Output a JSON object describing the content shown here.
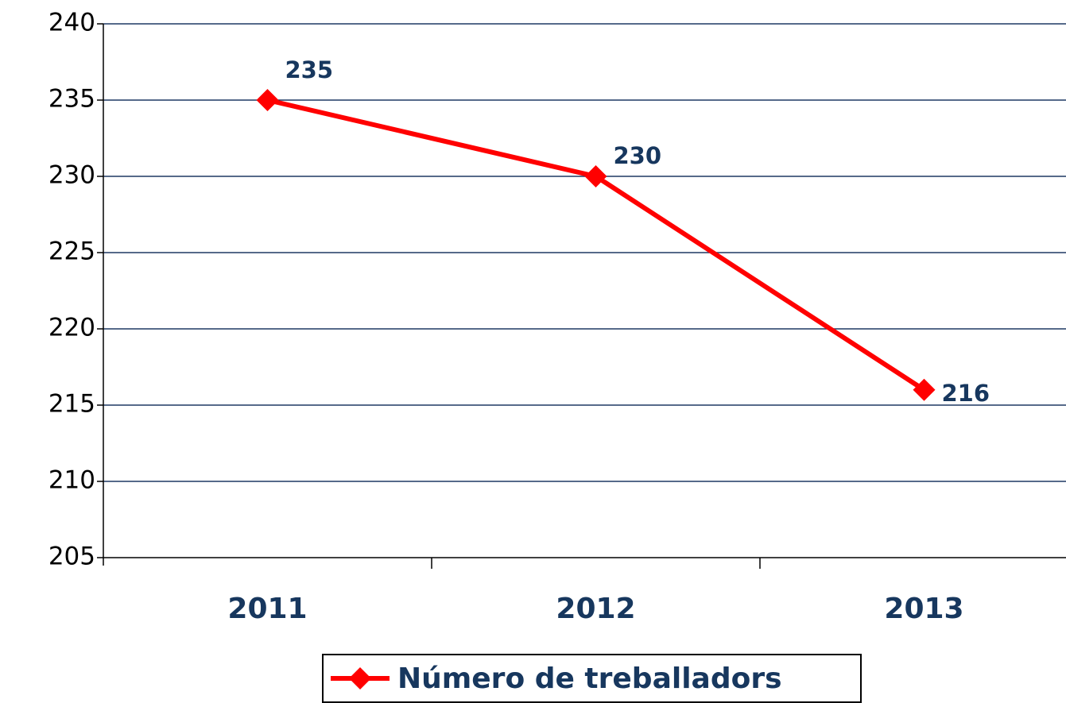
{
  "chart_data": {
    "type": "line",
    "categories": [
      "2011",
      "2012",
      "2013"
    ],
    "series": [
      {
        "name": "Número de treballadors",
        "color": "#ff0000",
        "values": [
          235,
          230,
          216
        ]
      }
    ],
    "ylim": [
      205,
      240
    ],
    "yticks": [
      205,
      210,
      215,
      220,
      225,
      230,
      235,
      240
    ],
    "grid": true
  }
}
